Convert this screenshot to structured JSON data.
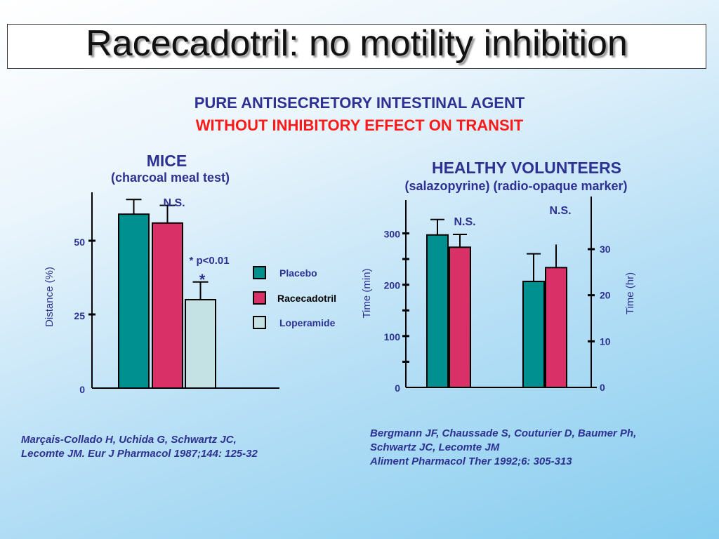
{
  "slide": {
    "title": "Racecadotril: no motility inhibition",
    "subtitle_line1": "PURE ANTISECRETORY INTESTINAL AGENT",
    "subtitle_line2": "WITHOUT INHIBITORY EFFECT ON TRANSIT"
  },
  "mice": {
    "heading": "MICE",
    "subheading": "(charcoal meal test)",
    "reference": "Marçais-Collado H, Uchida G, Schwartz JC,\nLecomte JM. Eur J Pharmacol 1987;144: 125-32"
  },
  "volunteers": {
    "heading": "HEALTHY VOLUNTEERS",
    "subheading": "(salazopyrine) (radio-opaque marker)",
    "reference": "Bergmann JF, Chaussade S, Couturier D, Baumer Ph,\nSchwartz JC, Lecomte JM\nAliment Pharmacol Ther 1992;6: 305-313"
  },
  "legend": {
    "items": [
      {
        "label": "Placebo",
        "color": "#009090"
      },
      {
        "label": "Racecadotril",
        "color": "#d93068"
      },
      {
        "label": "Loperamide",
        "color": "#c4e2e4"
      }
    ]
  },
  "chart_data": [
    {
      "type": "bar",
      "title": "MICE",
      "ylabel": "Distance (%)",
      "yticks": [
        0,
        25,
        50
      ],
      "ylim": [
        0,
        65
      ],
      "series": [
        {
          "name": "Placebo",
          "values": [
            59
          ],
          "error": [
            5
          ],
          "color": "#009090"
        },
        {
          "name": "Racecadotril",
          "values": [
            56
          ],
          "error": [
            6
          ],
          "color": "#d93068"
        },
        {
          "name": "Loperamide",
          "values": [
            30
          ],
          "error": [
            6
          ],
          "color": "#c4e2e4"
        }
      ],
      "annotations": [
        {
          "text": "N.S.",
          "target": "Racecadotril"
        },
        {
          "text": "* p<0.01",
          "target": "Loperamide"
        },
        {
          "text": "*",
          "target": "Loperamide"
        }
      ]
    },
    {
      "type": "bar",
      "title": "HEALTHY VOLUNTEERS",
      "ylabel_left": "Time (min)",
      "ylabel_right": "Time (hr)",
      "yticks_left": [
        0,
        100,
        200,
        300
      ],
      "yticks_right": [
        0,
        10,
        20,
        30
      ],
      "ylim_left": [
        0,
        365
      ],
      "groups": [
        {
          "label": "salazopyrine",
          "unit": "min",
          "annotation": "N.S.",
          "bars": [
            {
              "series": "Placebo",
              "value": 297,
              "error": 30
            },
            {
              "series": "Racecadotril",
              "value": 273,
              "error": 25
            }
          ]
        },
        {
          "label": "radio-opaque marker",
          "unit": "hr",
          "annotation": "N.S.",
          "bars": [
            {
              "series": "Placebo",
              "value": 23,
              "error": 6
            },
            {
              "series": "Racecadotril",
              "value": 26,
              "error": 5
            }
          ]
        }
      ]
    }
  ]
}
